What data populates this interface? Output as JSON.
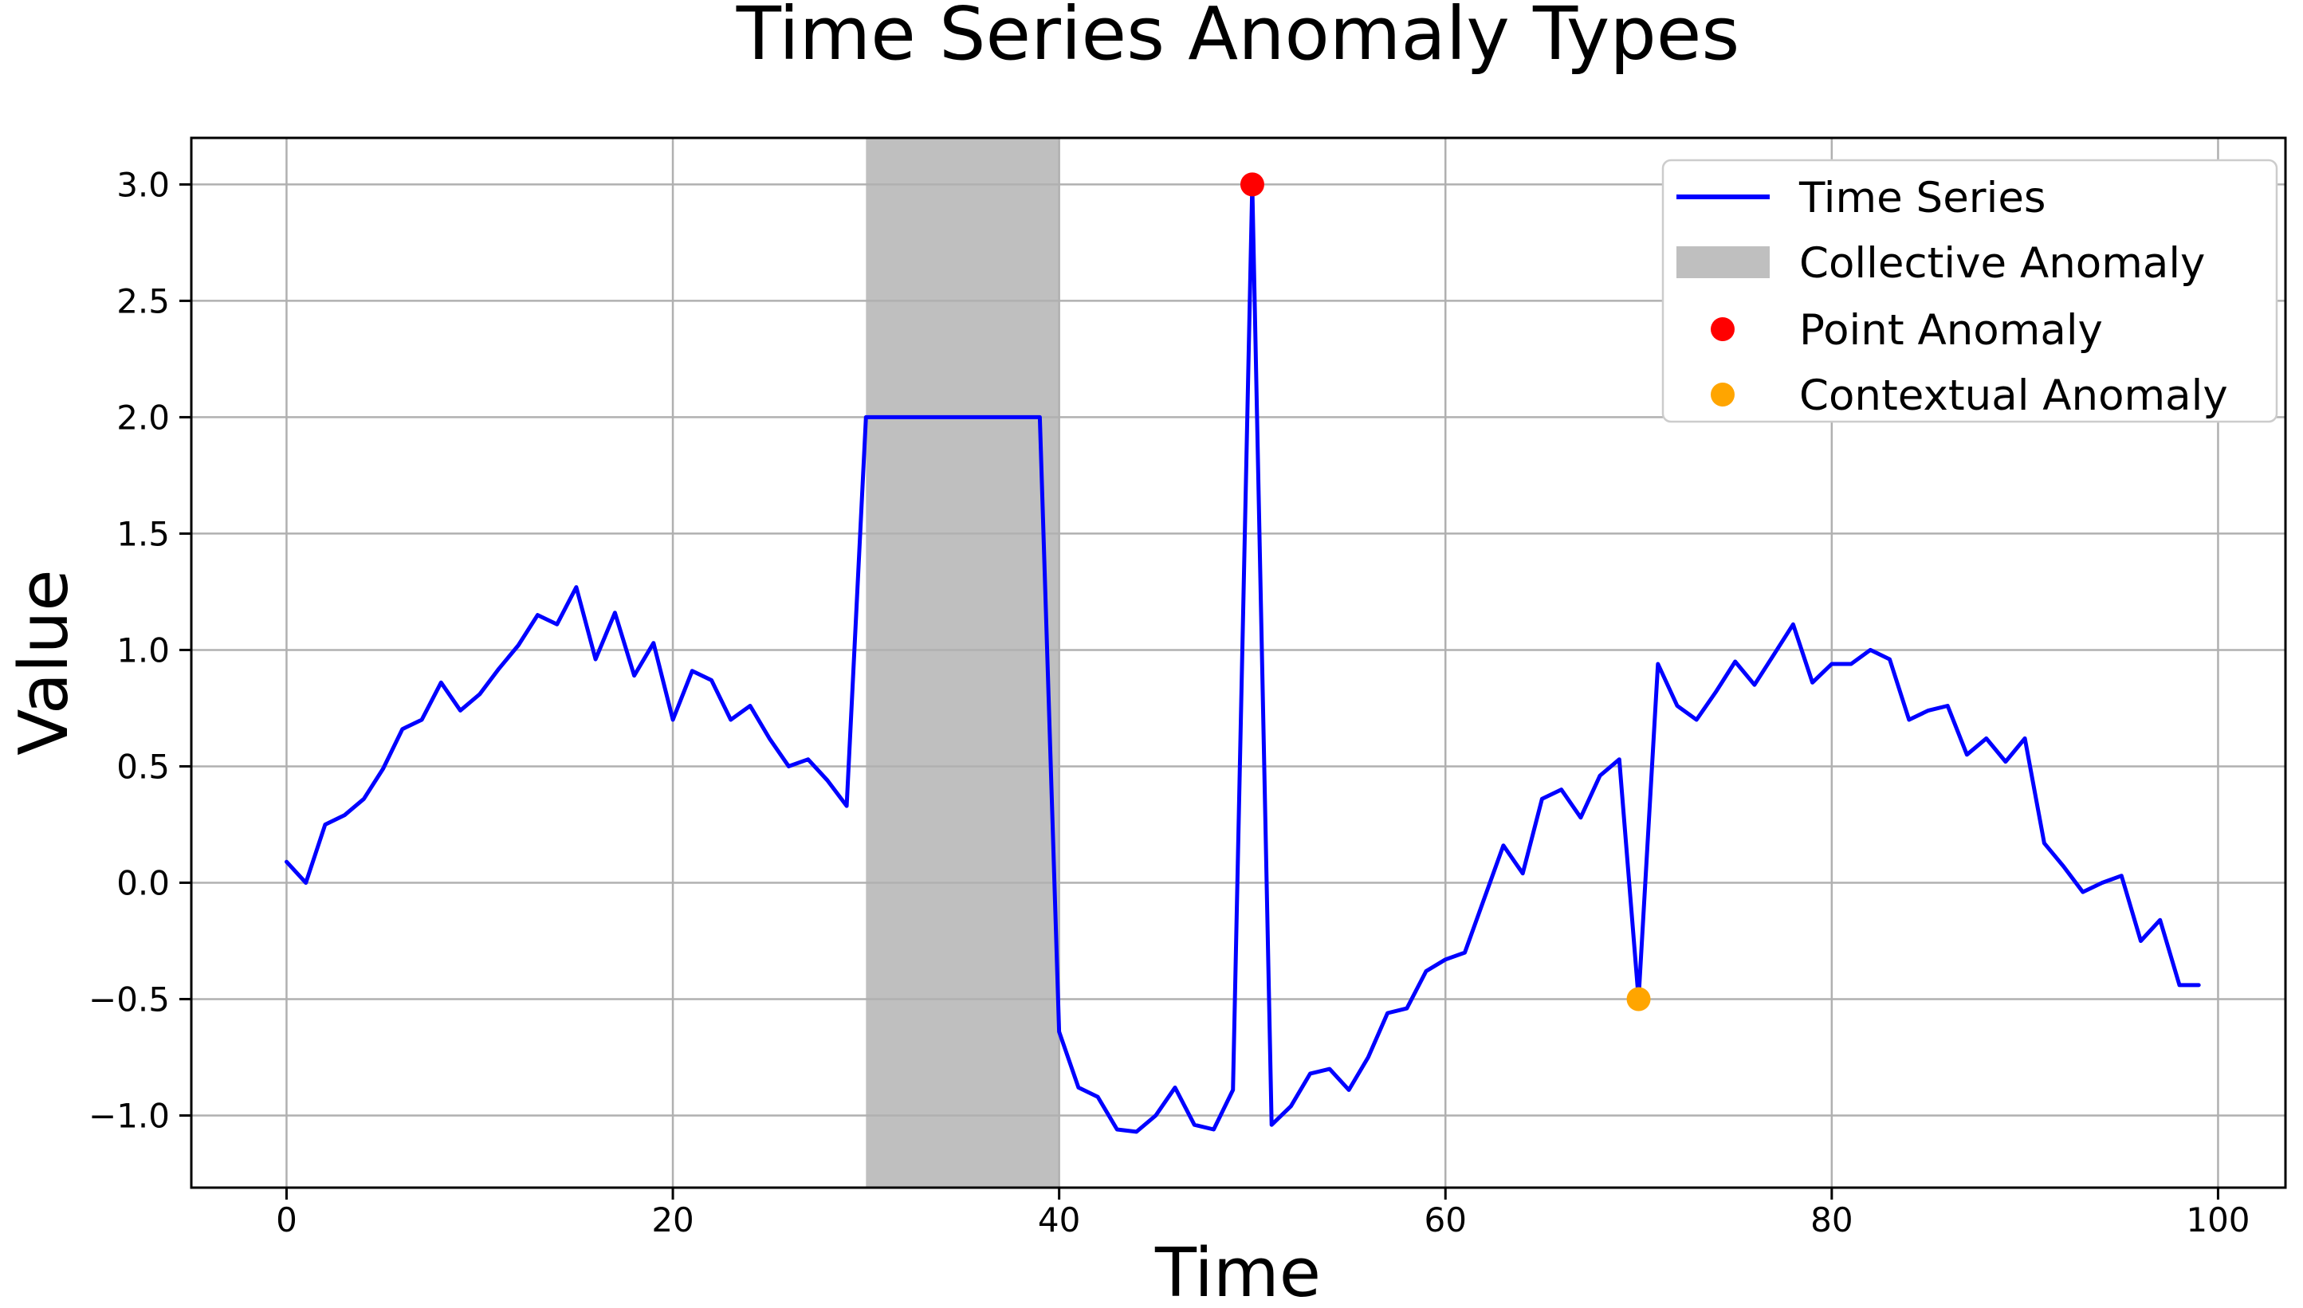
{
  "chart_data": {
    "type": "line",
    "title": "Time Series Anomaly Types",
    "xlabel": "Time",
    "ylabel": "Value",
    "xlim": [
      -4.93,
      103.49
    ],
    "ylim": [
      -1.31,
      3.2
    ],
    "x_ticks": [
      0,
      20,
      40,
      60,
      80,
      100
    ],
    "x_tick_labels": [
      "0",
      "20",
      "40",
      "60",
      "80",
      "100"
    ],
    "y_ticks": [
      -1.0,
      -0.5,
      0.0,
      0.5,
      1.0,
      1.5,
      2.0,
      2.5,
      3.0
    ],
    "y_tick_labels": [
      "−1.0",
      "−0.5",
      "0.0",
      "0.5",
      "1.0",
      "1.5",
      "2.0",
      "2.5",
      "3.0"
    ],
    "grid": true,
    "grid_color": "#b0b0b0",
    "background": "#ffffff",
    "x": [
      0,
      1,
      2,
      3,
      4,
      5,
      6,
      7,
      8,
      9,
      10,
      11,
      12,
      13,
      14,
      15,
      16,
      17,
      18,
      19,
      20,
      21,
      22,
      23,
      24,
      25,
      26,
      27,
      28,
      29,
      30,
      31,
      32,
      33,
      34,
      35,
      36,
      37,
      38,
      39,
      40,
      41,
      42,
      43,
      44,
      45,
      46,
      47,
      48,
      49,
      50,
      51,
      52,
      53,
      54,
      55,
      56,
      57,
      58,
      59,
      60,
      61,
      62,
      63,
      64,
      65,
      66,
      67,
      68,
      69,
      70,
      71,
      72,
      73,
      74,
      75,
      76,
      77,
      78,
      79,
      80,
      81,
      82,
      83,
      84,
      85,
      86,
      87,
      88,
      89,
      90,
      91,
      92,
      93,
      94,
      95,
      96,
      97,
      98,
      99
    ],
    "series": [
      {
        "name": "Time Series",
        "color": "#0000ff",
        "line_width": 5,
        "values": [
          0.09,
          0.0,
          0.25,
          0.29,
          0.36,
          0.49,
          0.66,
          0.7,
          0.86,
          0.74,
          0.81,
          0.92,
          1.02,
          1.15,
          1.11,
          1.27,
          0.96,
          1.16,
          0.89,
          1.03,
          0.7,
          0.91,
          0.87,
          0.7,
          0.76,
          0.62,
          0.5,
          0.53,
          0.44,
          0.33,
          2.0,
          2.0,
          2.0,
          2.0,
          2.0,
          2.0,
          2.0,
          2.0,
          2.0,
          2.0,
          -0.64,
          -0.88,
          -0.92,
          -1.06,
          -1.07,
          -1.0,
          -0.88,
          -1.04,
          -1.06,
          -0.89,
          3.0,
          -1.04,
          -0.96,
          -0.82,
          -0.8,
          -0.89,
          -0.75,
          -0.56,
          -0.54,
          -0.38,
          -0.33,
          -0.3,
          -0.07,
          0.16,
          0.04,
          0.36,
          0.4,
          0.28,
          0.46,
          0.53,
          -0.5,
          0.94,
          0.76,
          0.7,
          0.82,
          0.95,
          0.85,
          0.98,
          1.11,
          0.86,
          0.94,
          0.94,
          1.0,
          0.96,
          0.7,
          0.74,
          0.76,
          0.55,
          0.62,
          0.52,
          0.62,
          0.17,
          0.07,
          -0.04,
          0.0,
          0.03,
          -0.25,
          -0.16,
          -0.44,
          -0.44
        ]
      }
    ],
    "annotations": {
      "collective_anomaly": {
        "label": "Collective Anomaly",
        "x_start": 30,
        "x_end": 40,
        "fill_color": "rgba(128,128,128,0.5)"
      },
      "point_anomaly": {
        "label": "Point Anomaly",
        "x": 50,
        "y": 3.0,
        "color": "#ff0000",
        "marker_radius": 15
      },
      "contextual_anomaly": {
        "label": "Contextual Anomaly",
        "x": 70,
        "y": -0.5,
        "color": "#ffa500",
        "marker_radius": 15
      }
    },
    "legend": {
      "position": "upper right",
      "entries": [
        {
          "label": "Time Series",
          "swatch": "line",
          "color": "#0000ff"
        },
        {
          "label": "Collective Anomaly",
          "swatch": "patch",
          "color": "rgba(128,128,128,0.5)"
        },
        {
          "label": "Point Anomaly",
          "swatch": "dot",
          "color": "#ff0000"
        },
        {
          "label": "Contextual Anomaly",
          "swatch": "dot",
          "color": "#ffa500"
        }
      ]
    }
  }
}
